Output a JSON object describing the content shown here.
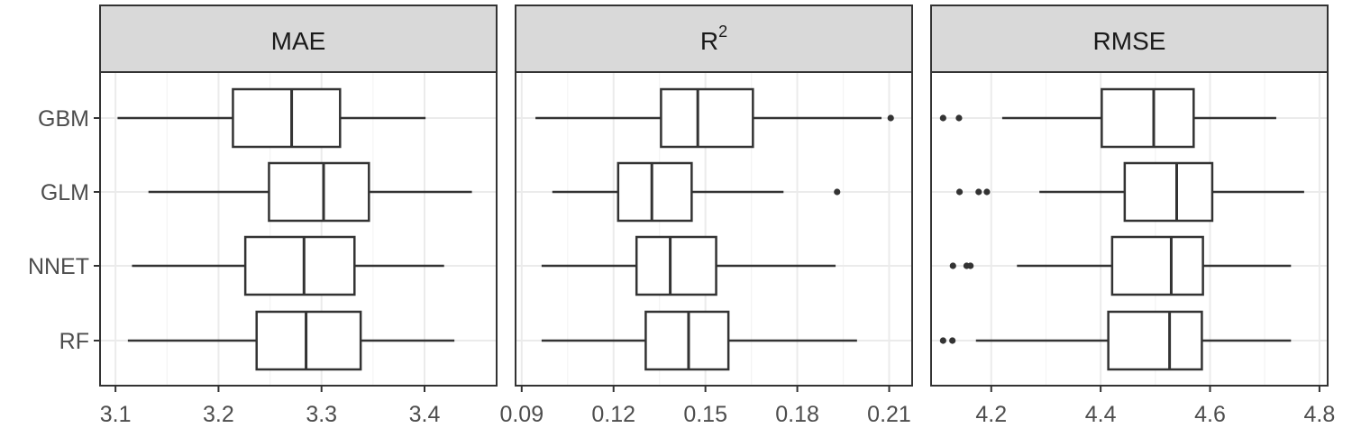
{
  "chart_data": {
    "type": "boxplot",
    "categories": [
      "GBM",
      "GLM",
      "NNET",
      "RF"
    ],
    "facets": [
      {
        "title": "MAE",
        "xlim": [
          3.085,
          3.47
        ],
        "ticks": [
          3.1,
          3.2,
          3.3,
          3.4
        ],
        "tick_labels": [
          "3.1",
          "3.2",
          "3.3",
          "3.4"
        ],
        "boxes": [
          {
            "model": "GBM",
            "whisker_low": 3.102,
            "q1": 3.214,
            "median": 3.271,
            "q3": 3.318,
            "whisker_high": 3.401,
            "outliers": []
          },
          {
            "model": "GLM",
            "whisker_low": 3.132,
            "q1": 3.249,
            "median": 3.302,
            "q3": 3.346,
            "whisker_high": 3.446,
            "outliers": []
          },
          {
            "model": "NNET",
            "whisker_low": 3.116,
            "q1": 3.226,
            "median": 3.283,
            "q3": 3.332,
            "whisker_high": 3.419,
            "outliers": []
          },
          {
            "model": "RF",
            "whisker_low": 3.112,
            "q1": 3.237,
            "median": 3.285,
            "q3": 3.338,
            "whisker_high": 3.429,
            "outliers": []
          }
        ]
      },
      {
        "title": "R",
        "title_sup": "2",
        "xlim": [
          0.088,
          0.2175
        ],
        "ticks": [
          0.09,
          0.12,
          0.15,
          0.18,
          0.21
        ],
        "tick_labels": [
          "0.09",
          "0.12",
          "0.15",
          "0.18",
          "0.21"
        ],
        "boxes": [
          {
            "model": "GBM",
            "whisker_low": 0.0945,
            "q1": 0.1355,
            "median": 0.1475,
            "q3": 0.1655,
            "whisker_high": 0.2075,
            "outliers": [
              0.2105
            ]
          },
          {
            "model": "GLM",
            "whisker_low": 0.1,
            "q1": 0.1215,
            "median": 0.1325,
            "q3": 0.1455,
            "whisker_high": 0.1755,
            "outliers": [
              0.193
            ]
          },
          {
            "model": "NNET",
            "whisker_low": 0.0965,
            "q1": 0.1275,
            "median": 0.1385,
            "q3": 0.1535,
            "whisker_high": 0.1925,
            "outliers": []
          },
          {
            "model": "RF",
            "whisker_low": 0.0965,
            "q1": 0.1305,
            "median": 0.1445,
            "q3": 0.1575,
            "whisker_high": 0.1995,
            "outliers": []
          }
        ]
      },
      {
        "title": "RMSE",
        "xlim": [
          4.09,
          4.815
        ],
        "ticks": [
          4.2,
          4.4,
          4.6,
          4.8
        ],
        "tick_labels": [
          "4.2",
          "4.4",
          "4.6",
          "4.8"
        ],
        "boxes": [
          {
            "model": "GBM",
            "whisker_low": 4.22,
            "q1": 4.402,
            "median": 4.497,
            "q3": 4.57,
            "whisker_high": 4.721,
            "outliers": [
              4.112,
              4.141
            ]
          },
          {
            "model": "GLM",
            "whisker_low": 4.288,
            "q1": 4.444,
            "median": 4.539,
            "q3": 4.604,
            "whisker_high": 4.772,
            "outliers": [
              4.142,
              4.177,
              4.192
            ]
          },
          {
            "model": "NNET",
            "whisker_low": 4.247,
            "q1": 4.421,
            "median": 4.529,
            "q3": 4.587,
            "whisker_high": 4.748,
            "outliers": [
              4.13,
              4.155,
              4.162
            ]
          },
          {
            "model": "RF",
            "whisker_low": 4.172,
            "q1": 4.414,
            "median": 4.526,
            "q3": 4.585,
            "whisker_high": 4.748,
            "outliers": [
              4.112,
              4.129
            ]
          }
        ]
      }
    ],
    "grid": true,
    "legend": "none"
  }
}
